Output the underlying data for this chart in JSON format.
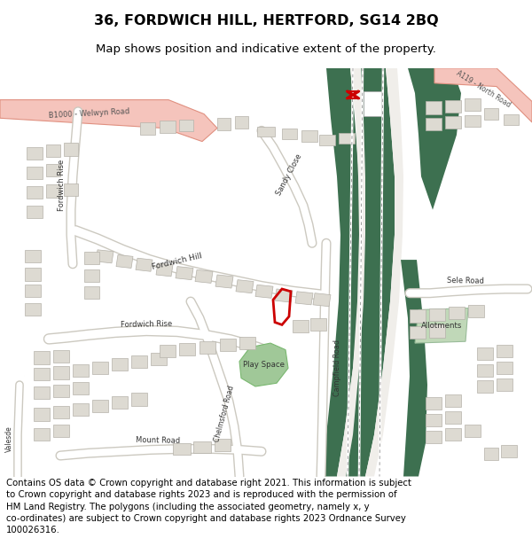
{
  "title": "36, FORDWICH HILL, HERTFORD, SG14 2BQ",
  "subtitle": "Map shows position and indicative extent of the property.",
  "footer_lines": [
    "Contains OS data © Crown copyright and database right 2021. This information is subject to Crown copyright and database rights 2023 and is reproduced with the permission of",
    "HM Land Registry. The polygons (including the associated geometry, namely x, y co-ordinates) are subject to Crown copyright and database rights 2023 Ordnance Survey",
    "100026316."
  ],
  "bg_map": "#f0eeea",
  "railway_green": "#3d7050",
  "pale_green": "#a0c898",
  "allot_green": "#c0d8b8",
  "building_fill": "#dddad2",
  "building_edge": "#b5b2aa",
  "road_fill": "#ffffff",
  "road_edge": "#ccc9c0",
  "b1000_fill": "#f5c4bc",
  "b1000_edge": "#e09080",
  "red_marker": "#cc0000",
  "rail_symbol_color": "#cc0000"
}
